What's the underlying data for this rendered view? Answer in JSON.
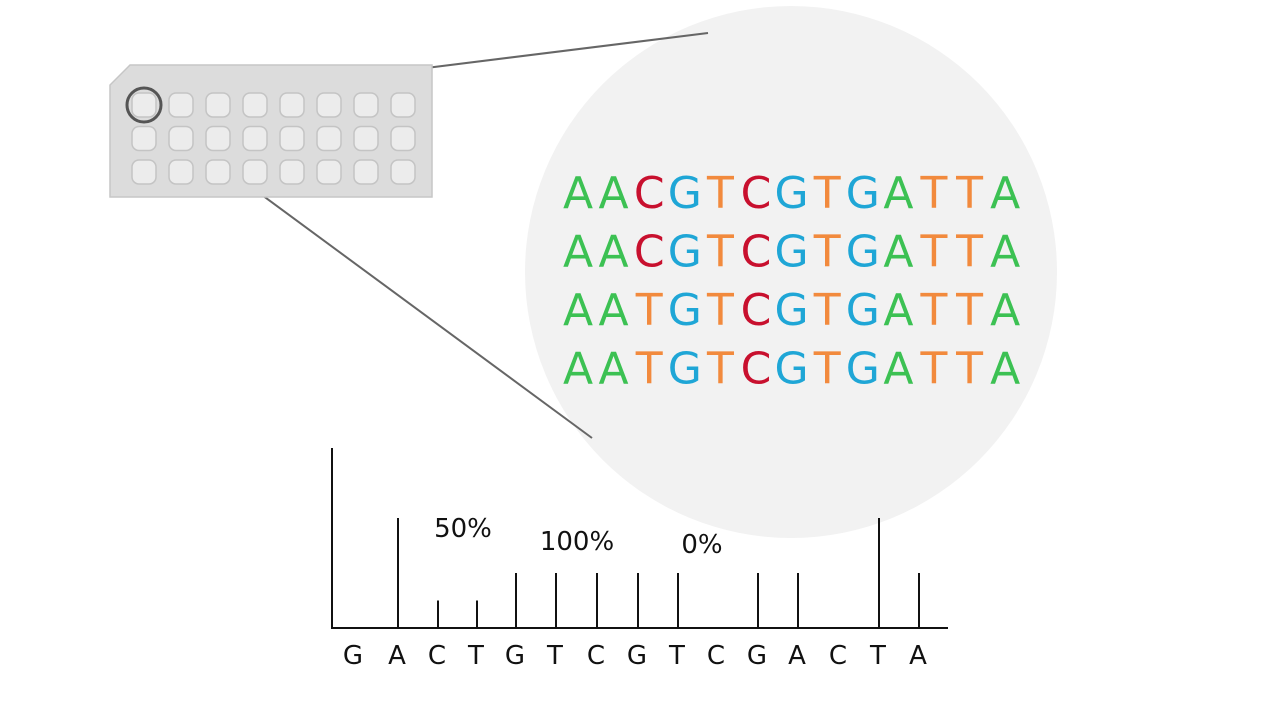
{
  "sequences": [
    "AACGTCGTGATTA",
    "AACGTCGTGATTA",
    "AATGTCGTGATTA",
    "AATGTCGTGATTA"
  ],
  "base_colors": {
    "A": "#3cc153",
    "C": "#c8102e",
    "G": "#1fa6d6",
    "T": "#f28a3d"
  },
  "pyrogram": {
    "dispensation": [
      "G",
      "A",
      "C",
      "T",
      "G",
      "T",
      "C",
      "G",
      "T",
      "C",
      "G",
      "A",
      "C",
      "T",
      "A"
    ],
    "peaks": [
      0,
      2,
      0.5,
      0.5,
      1,
      1,
      1,
      1,
      1,
      0,
      1,
      1,
      0,
      2,
      1
    ],
    "annotations": [
      "50%",
      "100%",
      "0%"
    ]
  }
}
